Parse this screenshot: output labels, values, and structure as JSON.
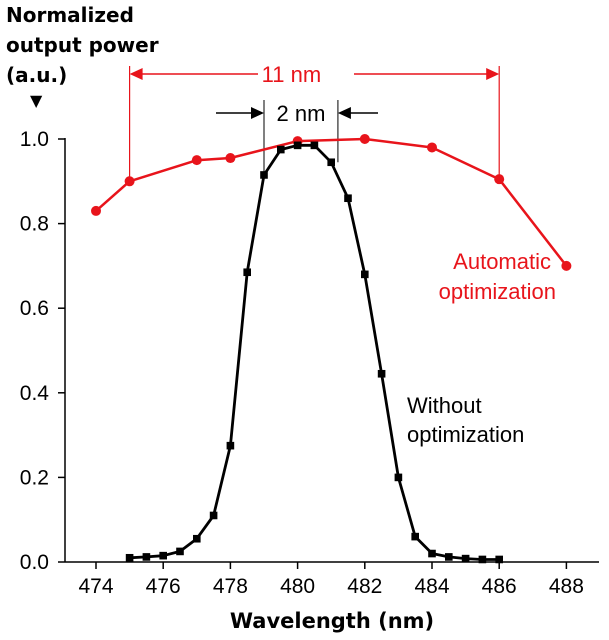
{
  "chart_data": {
    "type": "line",
    "ylabel_lines": [
      "Normalized",
      "output power",
      "(a.u.)"
    ],
    "ylabel_arrow": "▼",
    "xlabel": "Wavelength (nm)",
    "xlim": [
      473,
      489
    ],
    "ylim": [
      0,
      1.0
    ],
    "x_ticks": [
      "474",
      "476",
      "478",
      "480",
      "482",
      "484",
      "486",
      "488"
    ],
    "y_ticks": [
      "0.0",
      "0.2",
      "0.4",
      "0.6",
      "0.8",
      "1.0"
    ],
    "grid": false,
    "series": [
      {
        "name": "Automatic optimization",
        "label_lines": [
          "Automatic",
          "optimization"
        ],
        "color": "#e8141b",
        "marker": "circle",
        "x": [
          474,
          475,
          477,
          478,
          480,
          482,
          484,
          486,
          488
        ],
        "y": [
          0.83,
          0.9,
          0.95,
          0.955,
          0.995,
          1.0,
          0.98,
          0.905,
          0.7
        ]
      },
      {
        "name": "Without optimization",
        "label_lines": [
          "Without",
          "optimization"
        ],
        "color": "#000000",
        "marker": "square",
        "x": [
          475,
          475.5,
          476,
          476.5,
          477,
          477.5,
          478,
          478.5,
          479,
          479.5,
          480,
          480.5,
          481,
          481.5,
          482,
          482.5,
          483,
          483.5,
          484,
          484.5,
          485,
          485.5,
          486
        ],
        "y": [
          0.01,
          0.012,
          0.015,
          0.025,
          0.055,
          0.11,
          0.275,
          0.685,
          0.915,
          0.975,
          0.985,
          0.985,
          0.945,
          0.86,
          0.68,
          0.445,
          0.2,
          0.06,
          0.02,
          0.012,
          0.008,
          0.006,
          0.006
        ]
      }
    ],
    "annotations": [
      {
        "label": "11 nm",
        "from": 475,
        "to": 486,
        "color": "#e8141b"
      },
      {
        "label": "2 nm",
        "from": 479,
        "to": 481.2,
        "color": "#000000"
      }
    ]
  }
}
